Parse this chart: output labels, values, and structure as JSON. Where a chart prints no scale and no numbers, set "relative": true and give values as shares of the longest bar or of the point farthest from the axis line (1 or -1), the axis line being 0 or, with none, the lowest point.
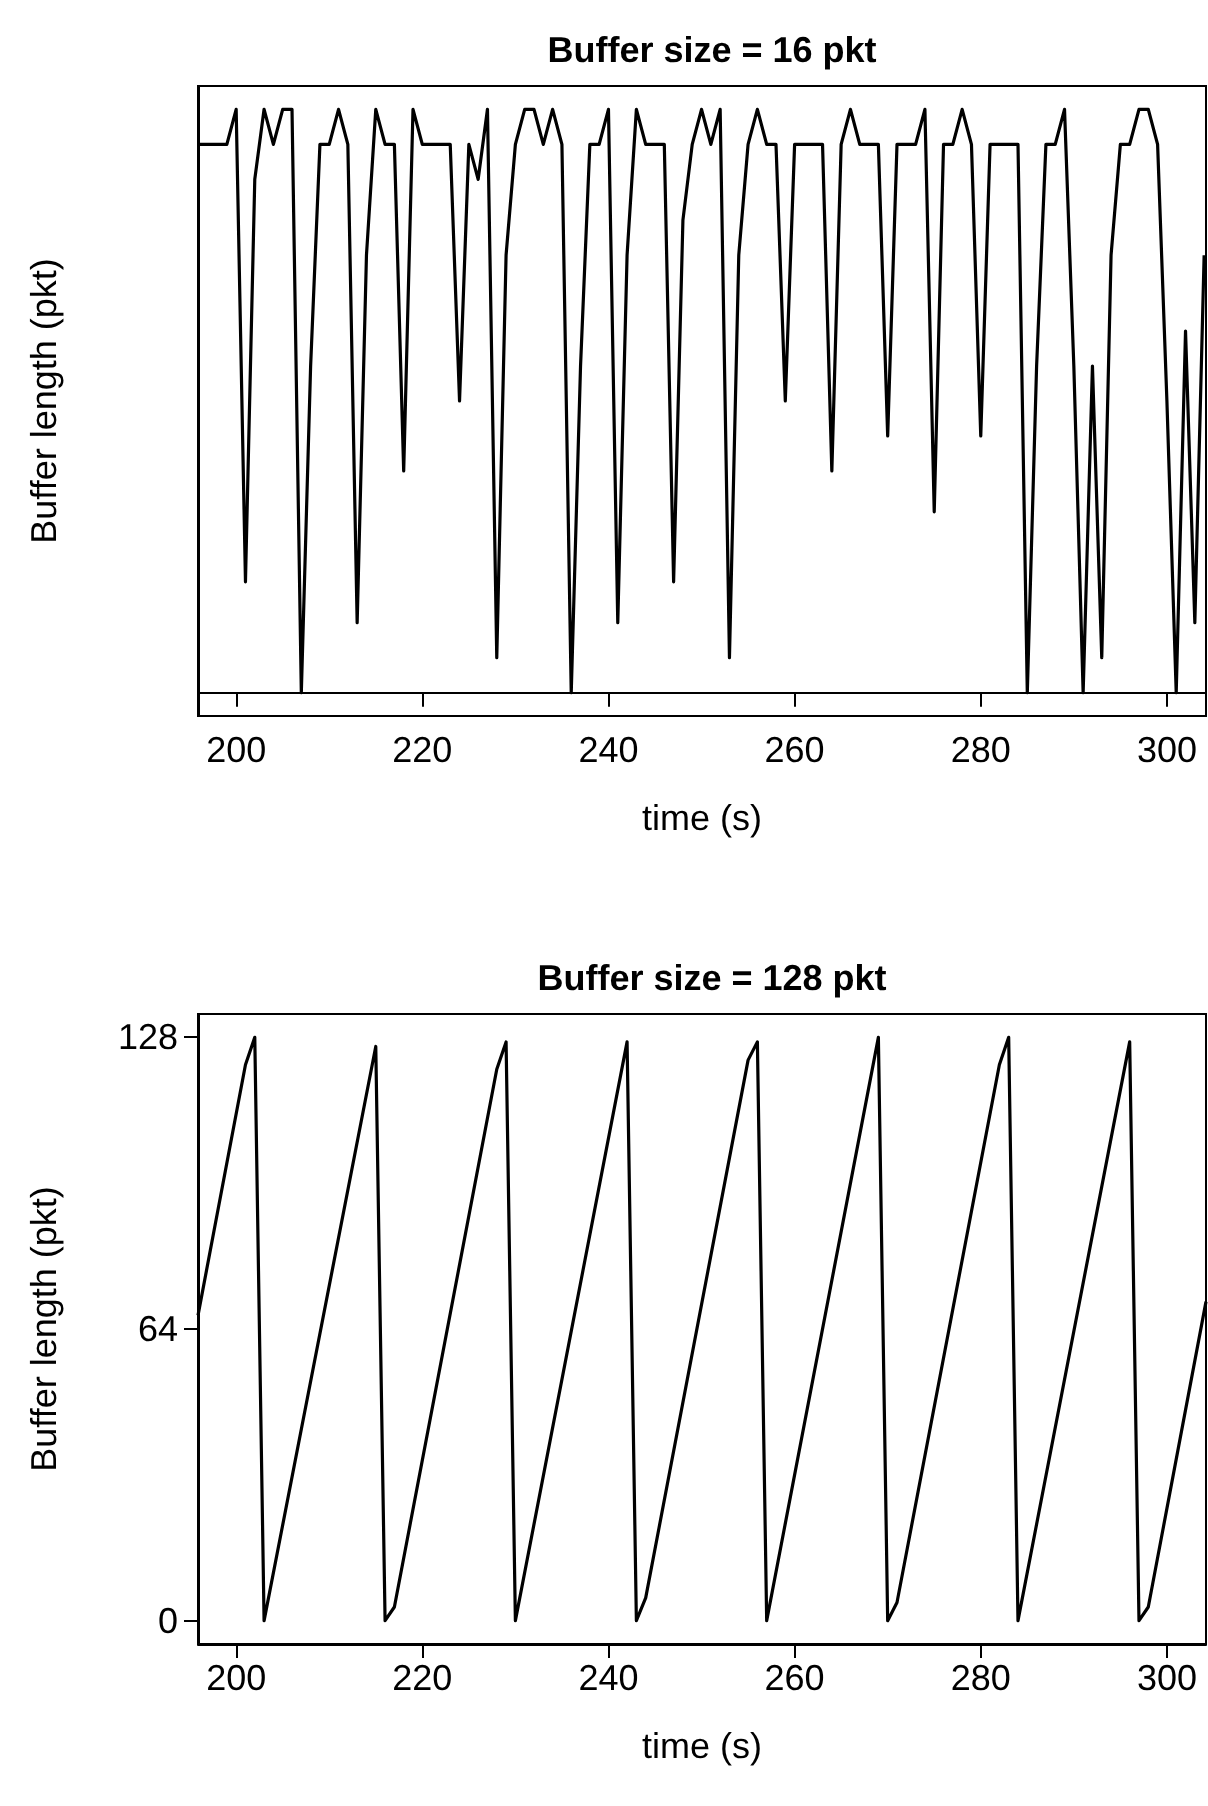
{
  "chart_data": [
    {
      "type": "line",
      "title": "Buffer size = 16 pkt",
      "xlabel": "time (s)",
      "ylabel": "Buffer length (pkt)",
      "relative": true,
      "grid": false,
      "legend": false,
      "line_style": "solid",
      "xlim": [
        195.9,
        304.2
      ],
      "xticks": [
        200,
        220,
        240,
        260,
        280,
        300
      ],
      "x": [
        196,
        197,
        198,
        199,
        200,
        201,
        202,
        203,
        204,
        205,
        206,
        207,
        208,
        209,
        210,
        211,
        212,
        213,
        214,
        215,
        216,
        217,
        218,
        219,
        220,
        221,
        222,
        223,
        224,
        225,
        226,
        227,
        228,
        229,
        230,
        231,
        232,
        233,
        234,
        235,
        236,
        237,
        238,
        239,
        240,
        241,
        242,
        243,
        244,
        245,
        246,
        247,
        248,
        249,
        250,
        251,
        252,
        253,
        254,
        255,
        256,
        257,
        258,
        259,
        260,
        261,
        262,
        263,
        264,
        265,
        266,
        267,
        268,
        269,
        270,
        271,
        272,
        273,
        274,
        275,
        276,
        277,
        278,
        279,
        280,
        281,
        282,
        283,
        284,
        285,
        286,
        287,
        288,
        289,
        290,
        291,
        292,
        293,
        294,
        295,
        296,
        297,
        298,
        299,
        300,
        301,
        302,
        303,
        304
      ],
      "series": [
        {
          "color": "#000000",
          "values": [
            0.94,
            0.94,
            0.94,
            0.94,
            1,
            0.19,
            0.88,
            1,
            0.94,
            1,
            1,
            0,
            0.56,
            0.94,
            0.94,
            1,
            0.94,
            0.12,
            0.75,
            1,
            0.94,
            0.94,
            0.38,
            1,
            0.94,
            0.94,
            0.94,
            0.94,
            0.5,
            0.94,
            0.88,
            1,
            0.06,
            0.75,
            0.94,
            1,
            1,
            0.94,
            1,
            0.94,
            0,
            0.56,
            0.94,
            0.94,
            1,
            0.12,
            0.75,
            1,
            0.94,
            0.94,
            0.94,
            0.19,
            0.81,
            0.94,
            1,
            0.94,
            1,
            0.06,
            0.75,
            0.94,
            1,
            0.94,
            0.94,
            0.5,
            0.94,
            0.94,
            0.94,
            0.94,
            0.38,
            0.94,
            1,
            0.94,
            0.94,
            0.94,
            0.44,
            0.94,
            0.94,
            0.94,
            1,
            0.31,
            0.94,
            0.94,
            1,
            0.94,
            0.44,
            0.94,
            0.94,
            0.94,
            0.94,
            0,
            0.56,
            0.94,
            0.94,
            1,
            0.56,
            0,
            0.56,
            0.06,
            0.75,
            0.94,
            0.94,
            1,
            1,
            0.94,
            0.5,
            0,
            0.62,
            0.12,
            0.75
          ]
        }
      ]
    },
    {
      "type": "line",
      "title": "Buffer size = 128 pkt",
      "xlabel": "time (s)",
      "ylabel": "Buffer length (pkt)",
      "grid": false,
      "legend": false,
      "line_style": "solid",
      "xlim": [
        195.9,
        304.2
      ],
      "xticks": [
        200,
        220,
        240,
        260,
        280,
        300
      ],
      "ylim": [
        -5.12,
        133.12
      ],
      "yticks": [
        0,
        64,
        128
      ],
      "x": [
        195.9,
        201,
        202,
        203,
        215,
        216,
        217,
        228,
        229,
        230,
        242,
        243,
        244,
        255,
        256,
        257,
        269,
        270,
        271,
        282,
        283,
        284,
        296,
        297,
        298,
        304.2
      ],
      "series": [
        {
          "color": "#000000",
          "values": [
            67,
            122,
            128,
            0,
            126,
            0,
            3,
            121,
            127,
            0,
            127,
            0,
            5,
            123,
            127,
            0,
            128,
            0,
            4,
            122,
            128,
            0,
            127,
            0,
            3,
            70
          ]
        }
      ]
    }
  ]
}
